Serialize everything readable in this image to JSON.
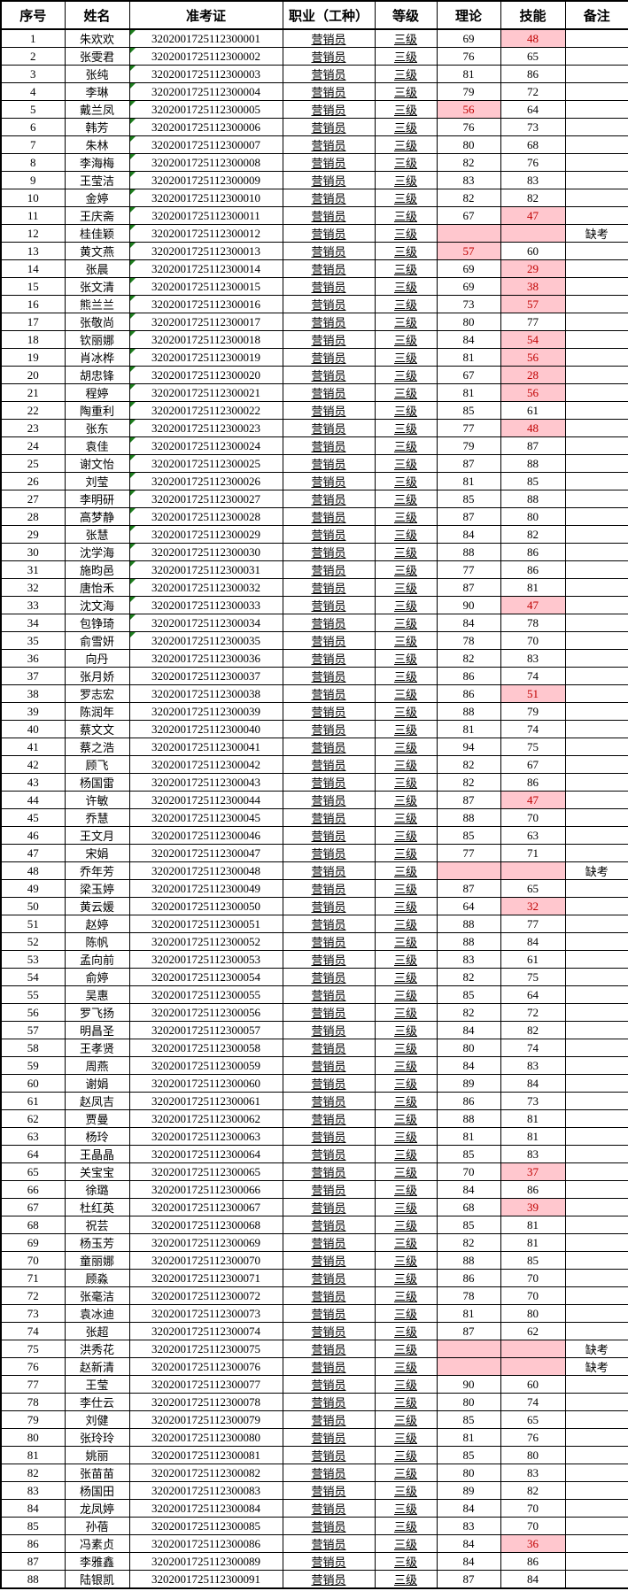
{
  "table": {
    "headers": [
      "序号",
      "姓名",
      "准考证",
      "职业（工种）",
      "等级",
      "理论",
      "技能",
      "备注"
    ],
    "occupation_all": "营销员",
    "level_all": "三级",
    "absent_label": "缺考",
    "highlight_below": 60,
    "green_triangle_through_row": 35,
    "rows": [
      {
        "no": "1",
        "name": "朱欢欢",
        "ticket": "3202001725112300001",
        "theory": "69",
        "skill": "48",
        "note": ""
      },
      {
        "no": "2",
        "name": "张雯君",
        "ticket": "3202001725112300002",
        "theory": "76",
        "skill": "65",
        "note": ""
      },
      {
        "no": "3",
        "name": "张纯",
        "ticket": "3202001725112300003",
        "theory": "81",
        "skill": "86",
        "note": ""
      },
      {
        "no": "4",
        "name": "李琳",
        "ticket": "3202001725112300004",
        "theory": "79",
        "skill": "72",
        "note": ""
      },
      {
        "no": "5",
        "name": "戴兰凤",
        "ticket": "3202001725112300005",
        "theory": "56",
        "skill": "64",
        "note": ""
      },
      {
        "no": "6",
        "name": "韩芳",
        "ticket": "3202001725112300006",
        "theory": "76",
        "skill": "73",
        "note": ""
      },
      {
        "no": "7",
        "name": "朱林",
        "ticket": "3202001725112300007",
        "theory": "80",
        "skill": "68",
        "note": ""
      },
      {
        "no": "8",
        "name": "李海梅",
        "ticket": "3202001725112300008",
        "theory": "82",
        "skill": "76",
        "note": ""
      },
      {
        "no": "9",
        "name": "王莹洁",
        "ticket": "3202001725112300009",
        "theory": "83",
        "skill": "83",
        "note": ""
      },
      {
        "no": "10",
        "name": "金婷",
        "ticket": "3202001725112300010",
        "theory": "82",
        "skill": "82",
        "note": ""
      },
      {
        "no": "11",
        "name": "王庆斋",
        "ticket": "3202001725112300011",
        "theory": "67",
        "skill": "47",
        "note": ""
      },
      {
        "no": "12",
        "name": "桂佳颖",
        "ticket": "3202001725112300012",
        "theory": "",
        "skill": "",
        "note": "缺考"
      },
      {
        "no": "13",
        "name": "黄文燕",
        "ticket": "3202001725112300013",
        "theory": "57",
        "skill": "60",
        "note": ""
      },
      {
        "no": "14",
        "name": "张晨",
        "ticket": "3202001725112300014",
        "theory": "69",
        "skill": "29",
        "note": ""
      },
      {
        "no": "15",
        "name": "张文清",
        "ticket": "3202001725112300015",
        "theory": "69",
        "skill": "38",
        "note": ""
      },
      {
        "no": "16",
        "name": "熊兰兰",
        "ticket": "3202001725112300016",
        "theory": "73",
        "skill": "57",
        "note": ""
      },
      {
        "no": "17",
        "name": "张敬尚",
        "ticket": "3202001725112300017",
        "theory": "80",
        "skill": "77",
        "note": ""
      },
      {
        "no": "18",
        "name": "钦丽娜",
        "ticket": "3202001725112300018",
        "theory": "84",
        "skill": "54",
        "note": ""
      },
      {
        "no": "19",
        "name": "肖冰桦",
        "ticket": "3202001725112300019",
        "theory": "81",
        "skill": "56",
        "note": ""
      },
      {
        "no": "20",
        "name": "胡忠锋",
        "ticket": "3202001725112300020",
        "theory": "67",
        "skill": "28",
        "note": ""
      },
      {
        "no": "21",
        "name": "程婷",
        "ticket": "3202001725112300021",
        "theory": "81",
        "skill": "56",
        "note": ""
      },
      {
        "no": "22",
        "name": "陶重利",
        "ticket": "3202001725112300022",
        "theory": "85",
        "skill": "61",
        "note": ""
      },
      {
        "no": "23",
        "name": "张东",
        "ticket": "3202001725112300023",
        "theory": "77",
        "skill": "48",
        "note": ""
      },
      {
        "no": "24",
        "name": "袁佳",
        "ticket": "3202001725112300024",
        "theory": "79",
        "skill": "87",
        "note": ""
      },
      {
        "no": "25",
        "name": "谢文怡",
        "ticket": "3202001725112300025",
        "theory": "87",
        "skill": "88",
        "note": ""
      },
      {
        "no": "26",
        "name": "刘莹",
        "ticket": "3202001725112300026",
        "theory": "81",
        "skill": "85",
        "note": ""
      },
      {
        "no": "27",
        "name": "李明研",
        "ticket": "3202001725112300027",
        "theory": "85",
        "skill": "88",
        "note": ""
      },
      {
        "no": "28",
        "name": "高梦静",
        "ticket": "3202001725112300028",
        "theory": "87",
        "skill": "80",
        "note": ""
      },
      {
        "no": "29",
        "name": "张慧",
        "ticket": "3202001725112300029",
        "theory": "84",
        "skill": "82",
        "note": ""
      },
      {
        "no": "30",
        "name": "沈学海",
        "ticket": "3202001725112300030",
        "theory": "88",
        "skill": "86",
        "note": ""
      },
      {
        "no": "31",
        "name": "施昀邑",
        "ticket": "3202001725112300031",
        "theory": "77",
        "skill": "86",
        "note": ""
      },
      {
        "no": "32",
        "name": "唐怡禾",
        "ticket": "3202001725112300032",
        "theory": "87",
        "skill": "81",
        "note": ""
      },
      {
        "no": "33",
        "name": "沈文海",
        "ticket": "3202001725112300033",
        "theory": "90",
        "skill": "47",
        "note": ""
      },
      {
        "no": "34",
        "name": "包铮琦",
        "ticket": "3202001725112300034",
        "theory": "84",
        "skill": "78",
        "note": ""
      },
      {
        "no": "35",
        "name": "俞雪妍",
        "ticket": "3202001725112300035",
        "theory": "78",
        "skill": "70",
        "note": ""
      },
      {
        "no": "36",
        "name": "向丹",
        "ticket": "3202001725112300036",
        "theory": "82",
        "skill": "83",
        "note": ""
      },
      {
        "no": "37",
        "name": "张月娇",
        "ticket": "3202001725112300037",
        "theory": "86",
        "skill": "74",
        "note": ""
      },
      {
        "no": "38",
        "name": "罗志宏",
        "ticket": "3202001725112300038",
        "theory": "86",
        "skill": "51",
        "note": ""
      },
      {
        "no": "39",
        "name": "陈润年",
        "ticket": "3202001725112300039",
        "theory": "88",
        "skill": "79",
        "note": ""
      },
      {
        "no": "40",
        "name": "蔡文文",
        "ticket": "3202001725112300040",
        "theory": "81",
        "skill": "74",
        "note": ""
      },
      {
        "no": "41",
        "name": "蔡之浩",
        "ticket": "3202001725112300041",
        "theory": "94",
        "skill": "75",
        "note": ""
      },
      {
        "no": "42",
        "name": "顾飞",
        "ticket": "3202001725112300042",
        "theory": "82",
        "skill": "67",
        "note": ""
      },
      {
        "no": "43",
        "name": "杨国雷",
        "ticket": "3202001725112300043",
        "theory": "82",
        "skill": "86",
        "note": ""
      },
      {
        "no": "44",
        "name": "许敏",
        "ticket": "3202001725112300044",
        "theory": "87",
        "skill": "47",
        "note": ""
      },
      {
        "no": "45",
        "name": "乔慧",
        "ticket": "3202001725112300045",
        "theory": "88",
        "skill": "70",
        "note": ""
      },
      {
        "no": "46",
        "name": "王文月",
        "ticket": "3202001725112300046",
        "theory": "85",
        "skill": "63",
        "note": ""
      },
      {
        "no": "47",
        "name": "宋娟",
        "ticket": "3202001725112300047",
        "theory": "77",
        "skill": "71",
        "note": ""
      },
      {
        "no": "48",
        "name": "乔年芳",
        "ticket": "3202001725112300048",
        "theory": "",
        "skill": "",
        "note": "缺考"
      },
      {
        "no": "49",
        "name": "梁玉婷",
        "ticket": "3202001725112300049",
        "theory": "87",
        "skill": "65",
        "note": ""
      },
      {
        "no": "50",
        "name": "黄云媛",
        "ticket": "3202001725112300050",
        "theory": "64",
        "skill": "32",
        "note": ""
      },
      {
        "no": "51",
        "name": "赵婷",
        "ticket": "3202001725112300051",
        "theory": "88",
        "skill": "77",
        "note": ""
      },
      {
        "no": "52",
        "name": "陈帆",
        "ticket": "3202001725112300052",
        "theory": "88",
        "skill": "84",
        "note": ""
      },
      {
        "no": "53",
        "name": "孟向前",
        "ticket": "3202001725112300053",
        "theory": "83",
        "skill": "61",
        "note": ""
      },
      {
        "no": "54",
        "name": "俞婷",
        "ticket": "3202001725112300054",
        "theory": "82",
        "skill": "75",
        "note": ""
      },
      {
        "no": "55",
        "name": "吴惠",
        "ticket": "3202001725112300055",
        "theory": "85",
        "skill": "64",
        "note": ""
      },
      {
        "no": "56",
        "name": "罗飞扬",
        "ticket": "3202001725112300056",
        "theory": "82",
        "skill": "72",
        "note": ""
      },
      {
        "no": "57",
        "name": "明昌圣",
        "ticket": "3202001725112300057",
        "theory": "84",
        "skill": "82",
        "note": ""
      },
      {
        "no": "58",
        "name": "王孝贤",
        "ticket": "3202001725112300058",
        "theory": "80",
        "skill": "74",
        "note": ""
      },
      {
        "no": "59",
        "name": "周燕",
        "ticket": "3202001725112300059",
        "theory": "84",
        "skill": "83",
        "note": ""
      },
      {
        "no": "60",
        "name": "谢娟",
        "ticket": "3202001725112300060",
        "theory": "89",
        "skill": "84",
        "note": ""
      },
      {
        "no": "61",
        "name": "赵凤吉",
        "ticket": "3202001725112300061",
        "theory": "86",
        "skill": "73",
        "note": ""
      },
      {
        "no": "62",
        "name": "贾曼",
        "ticket": "3202001725112300062",
        "theory": "88",
        "skill": "81",
        "note": ""
      },
      {
        "no": "63",
        "name": "杨玲",
        "ticket": "3202001725112300063",
        "theory": "81",
        "skill": "81",
        "note": ""
      },
      {
        "no": "64",
        "name": "王晶晶",
        "ticket": "3202001725112300064",
        "theory": "85",
        "skill": "83",
        "note": ""
      },
      {
        "no": "65",
        "name": "关宝宝",
        "ticket": "3202001725112300065",
        "theory": "70",
        "skill": "37",
        "note": ""
      },
      {
        "no": "66",
        "name": "徐璐",
        "ticket": "3202001725112300066",
        "theory": "84",
        "skill": "86",
        "note": ""
      },
      {
        "no": "67",
        "name": "杜红英",
        "ticket": "3202001725112300067",
        "theory": "68",
        "skill": "39",
        "note": ""
      },
      {
        "no": "68",
        "name": "祝芸",
        "ticket": "3202001725112300068",
        "theory": "85",
        "skill": "81",
        "note": ""
      },
      {
        "no": "69",
        "name": "杨玉芳",
        "ticket": "3202001725112300069",
        "theory": "82",
        "skill": "81",
        "note": ""
      },
      {
        "no": "70",
        "name": "童丽娜",
        "ticket": "3202001725112300070",
        "theory": "88",
        "skill": "85",
        "note": ""
      },
      {
        "no": "71",
        "name": "顾淼",
        "ticket": "3202001725112300071",
        "theory": "86",
        "skill": "70",
        "note": ""
      },
      {
        "no": "72",
        "name": "张毫洁",
        "ticket": "3202001725112300072",
        "theory": "78",
        "skill": "70",
        "note": ""
      },
      {
        "no": "73",
        "name": "袁冰迪",
        "ticket": "3202001725112300073",
        "theory": "81",
        "skill": "80",
        "note": ""
      },
      {
        "no": "74",
        "name": "张超",
        "ticket": "3202001725112300074",
        "theory": "87",
        "skill": "62",
        "note": ""
      },
      {
        "no": "75",
        "name": "洪秀花",
        "ticket": "3202001725112300075",
        "theory": "",
        "skill": "",
        "note": "缺考"
      },
      {
        "no": "76",
        "name": "赵新清",
        "ticket": "3202001725112300076",
        "theory": "",
        "skill": "",
        "note": "缺考"
      },
      {
        "no": "77",
        "name": "王莹",
        "ticket": "3202001725112300077",
        "theory": "90",
        "skill": "60",
        "note": ""
      },
      {
        "no": "78",
        "name": "李仕云",
        "ticket": "3202001725112300078",
        "theory": "80",
        "skill": "74",
        "note": ""
      },
      {
        "no": "79",
        "name": "刘健",
        "ticket": "3202001725112300079",
        "theory": "85",
        "skill": "65",
        "note": ""
      },
      {
        "no": "80",
        "name": "张玲玲",
        "ticket": "3202001725112300080",
        "theory": "81",
        "skill": "76",
        "note": ""
      },
      {
        "no": "81",
        "name": "姚丽",
        "ticket": "3202001725112300081",
        "theory": "85",
        "skill": "80",
        "note": ""
      },
      {
        "no": "82",
        "name": "张苗苗",
        "ticket": "3202001725112300082",
        "theory": "80",
        "skill": "83",
        "note": ""
      },
      {
        "no": "83",
        "name": "杨国田",
        "ticket": "3202001725112300083",
        "theory": "89",
        "skill": "82",
        "note": ""
      },
      {
        "no": "84",
        "name": "龙凤婷",
        "ticket": "3202001725112300084",
        "theory": "84",
        "skill": "70",
        "note": ""
      },
      {
        "no": "85",
        "name": "孙蓓",
        "ticket": "3202001725112300085",
        "theory": "83",
        "skill": "70",
        "note": ""
      },
      {
        "no": "86",
        "name": "冯素贞",
        "ticket": "3202001725112300086",
        "theory": "84",
        "skill": "36",
        "note": ""
      },
      {
        "no": "87",
        "name": "李雅鑫",
        "ticket": "3202001725112300089",
        "theory": "84",
        "skill": "86",
        "note": ""
      },
      {
        "no": "88",
        "name": "陆银凯",
        "ticket": "3202001725112300091",
        "theory": "87",
        "skill": "84",
        "note": ""
      }
    ]
  },
  "colors": {
    "highlight_bg": "#FFC7CE",
    "highlight_text": "#C00000",
    "grid_line": "#000000",
    "triangle_green": "#1E7E1E"
  }
}
